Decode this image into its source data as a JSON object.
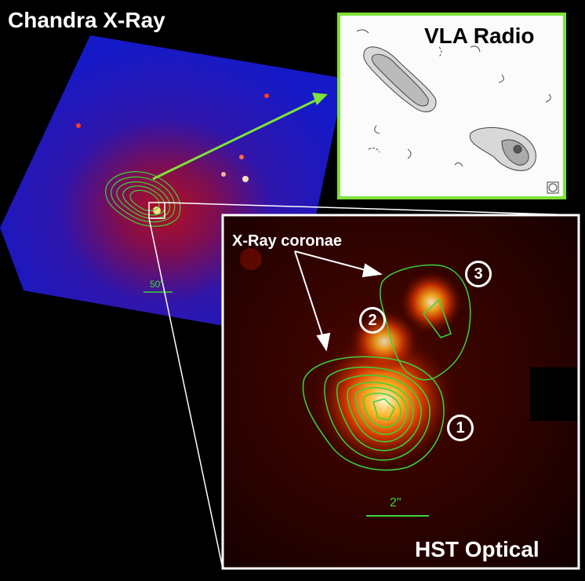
{
  "panels": {
    "chandra": {
      "title": "Chandra X-Ray",
      "scale_label": "50\""
    },
    "vla": {
      "title": "VLA Radio"
    },
    "hst": {
      "title": "HST Optical",
      "scale_label": "2\""
    }
  },
  "annotations": {
    "coronae_label": "X-Ray coronae",
    "markers": [
      "1",
      "2",
      "3"
    ]
  },
  "colors": {
    "xray_blue": "#1a1fd6",
    "contour_green": "#39d43a",
    "vla_frame": "#7ee23a",
    "text_white": "#ffffff"
  }
}
